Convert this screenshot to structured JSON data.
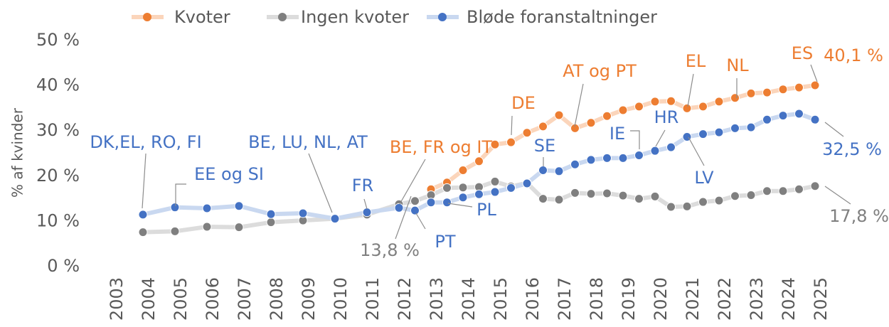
{
  "chart_data": {
    "type": "line",
    "y_label": "% af kvinder",
    "xlim": [
      2003,
      2025
    ],
    "xticks": [
      2003,
      2004,
      2005,
      2006,
      2007,
      2008,
      2009,
      2010,
      2011,
      2012,
      2013,
      2014,
      2015,
      2016,
      2017,
      2018,
      2019,
      2020,
      2021,
      2022,
      2023,
      2024,
      2025
    ],
    "ylim": [
      0,
      50
    ],
    "yticks": [
      {
        "value": 0,
        "label": "0 %"
      },
      {
        "value": 10,
        "label": "10 %"
      },
      {
        "value": 20,
        "label": "20 %"
      },
      {
        "value": 30,
        "label": "30 %"
      },
      {
        "value": 40,
        "label": "40 %"
      },
      {
        "value": 50,
        "label": "50 %"
      }
    ],
    "x": [
      2003.8,
      2004.8,
      2005.8,
      2006.8,
      2007.8,
      2008.8,
      2009.8,
      2010.8,
      2011.8,
      2012.3,
      2012.8,
      2013.3,
      2013.8,
      2014.3,
      2014.8,
      2015.3,
      2015.8,
      2016.3,
      2016.8,
      2017.3,
      2017.8,
      2018.3,
      2018.8,
      2019.3,
      2019.8,
      2020.3,
      2020.8,
      2021.3,
      2021.8,
      2022.3,
      2022.8,
      2023.3,
      2023.8,
      2024.3,
      2024.8
    ],
    "series": [
      {
        "name": "Kvoter",
        "color": "#ed7d31",
        "line_color": "#fbd5bb",
        "values": [
          null,
          null,
          null,
          null,
          null,
          null,
          null,
          null,
          null,
          null,
          17.1,
          18.6,
          21.3,
          23.3,
          27,
          27.5,
          29.6,
          31,
          33.5,
          30.6,
          31.8,
          33.3,
          34.6,
          35.4,
          36.5,
          36.6,
          35,
          35.4,
          36.5,
          37.3,
          38.3,
          38.5,
          39.2,
          39.6,
          40.1
        ]
      },
      {
        "name": "Ingen kvoter",
        "color": "#7f7f7f",
        "line_color": "#dcdcdc",
        "values": [
          7.6,
          7.8,
          8.8,
          8.7,
          9.8,
          10.2,
          10.6,
          11.5,
          13.8,
          14.5,
          15.8,
          17.4,
          17.5,
          17.6,
          18.8,
          17.7,
          18.5,
          15,
          14.8,
          16.3,
          16.1,
          16.2,
          15.7,
          15,
          15.5,
          13.2,
          13.3,
          14.3,
          14.6,
          15.6,
          15.8,
          16.7,
          16.7,
          17.1,
          17.8
        ]
      },
      {
        "name": "Bløde foranstaltninger",
        "color": "#4472c4",
        "line_color": "#c9d8f0",
        "values": [
          11.5,
          13.1,
          12.9,
          13.4,
          11.6,
          11.8,
          10.6,
          12,
          13,
          12.4,
          14.2,
          14.2,
          15.3,
          16,
          16.5,
          17.4,
          18.4,
          21.3,
          21.1,
          22.6,
          23.6,
          24,
          24,
          24.6,
          25.6,
          26.4,
          28.7,
          29.3,
          29.7,
          30.6,
          30.8,
          32.5,
          33.4,
          33.8,
          32.5
        ]
      }
    ],
    "annotations": [
      {
        "text": "DK,EL, RO, FI",
        "color": "#4472c4"
      },
      {
        "text": "EE og SI",
        "color": "#4472c4"
      },
      {
        "text": "BE, LU, NL, AT",
        "color": "#4472c4"
      },
      {
        "text": "FR",
        "color": "#4472c4"
      },
      {
        "text": "BE, FR og IT",
        "color": "#ed7d31"
      },
      {
        "text": "SE",
        "color": "#4472c4"
      },
      {
        "text": "DE",
        "color": "#ed7d31"
      },
      {
        "text": "AT og PT",
        "color": "#ed7d31"
      },
      {
        "text": "EL",
        "color": "#ed7d31"
      },
      {
        "text": "NL",
        "color": "#ed7d31"
      },
      {
        "text": "ES",
        "color": "#ed7d31"
      },
      {
        "text": "40,1 %",
        "color": "#ed7d31"
      },
      {
        "text": "HR",
        "color": "#4472c4"
      },
      {
        "text": "IE",
        "color": "#4472c4"
      },
      {
        "text": "LV",
        "color": "#4472c4"
      },
      {
        "text": "32,5 %",
        "color": "#4472c4"
      },
      {
        "text": "17,8 %",
        "color": "#7f7f7f"
      },
      {
        "text": "PL",
        "color": "#4472c4"
      },
      {
        "text": "PT",
        "color": "#4472c4"
      },
      {
        "text": "13,8 %",
        "color": "#7f7f7f"
      }
    ]
  }
}
